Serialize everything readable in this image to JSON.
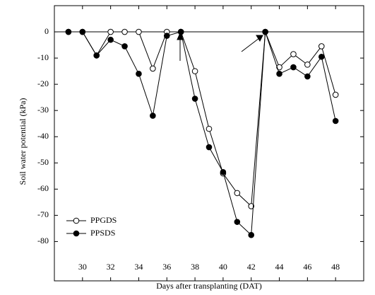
{
  "chart_data": {
    "type": "line",
    "x_label": "Days after transplanting (DAT)",
    "y_label": "Soil water potential (kPa)",
    "x": [
      29,
      30,
      31,
      32,
      33,
      34,
      35,
      36,
      37,
      38,
      39,
      40,
      41,
      42,
      43,
      44,
      45,
      46,
      47,
      48
    ],
    "series": [
      {
        "name": "PPGDS",
        "color": "#000000",
        "marker": "open",
        "values": [
          0,
          0,
          -9,
          0,
          0,
          0,
          -14,
          0,
          0,
          -15,
          -37,
          -54,
          -61.5,
          -66.5,
          0,
          -13.5,
          -8.5,
          -12.5,
          -5.5,
          -24
        ]
      },
      {
        "name": "PPSDS",
        "color": "#000000",
        "marker": "filled",
        "values": [
          0,
          0,
          -9,
          -3,
          -5.5,
          -16,
          -32,
          -1.5,
          0,
          -25.5,
          -44,
          -53.5,
          -72.5,
          -77.5,
          0,
          -16,
          -13.5,
          -17,
          -9.5,
          -34
        ]
      }
    ],
    "xlim": [
      28,
      50
    ],
    "xticks": [
      30,
      32,
      34,
      36,
      38,
      40,
      42,
      44,
      46,
      48
    ],
    "ylim": [
      -95,
      10
    ],
    "yticks": [
      0,
      -10,
      -20,
      -30,
      -40,
      -50,
      -60,
      -70,
      -80
    ],
    "zero_line": true,
    "legend": "lower-left"
  }
}
